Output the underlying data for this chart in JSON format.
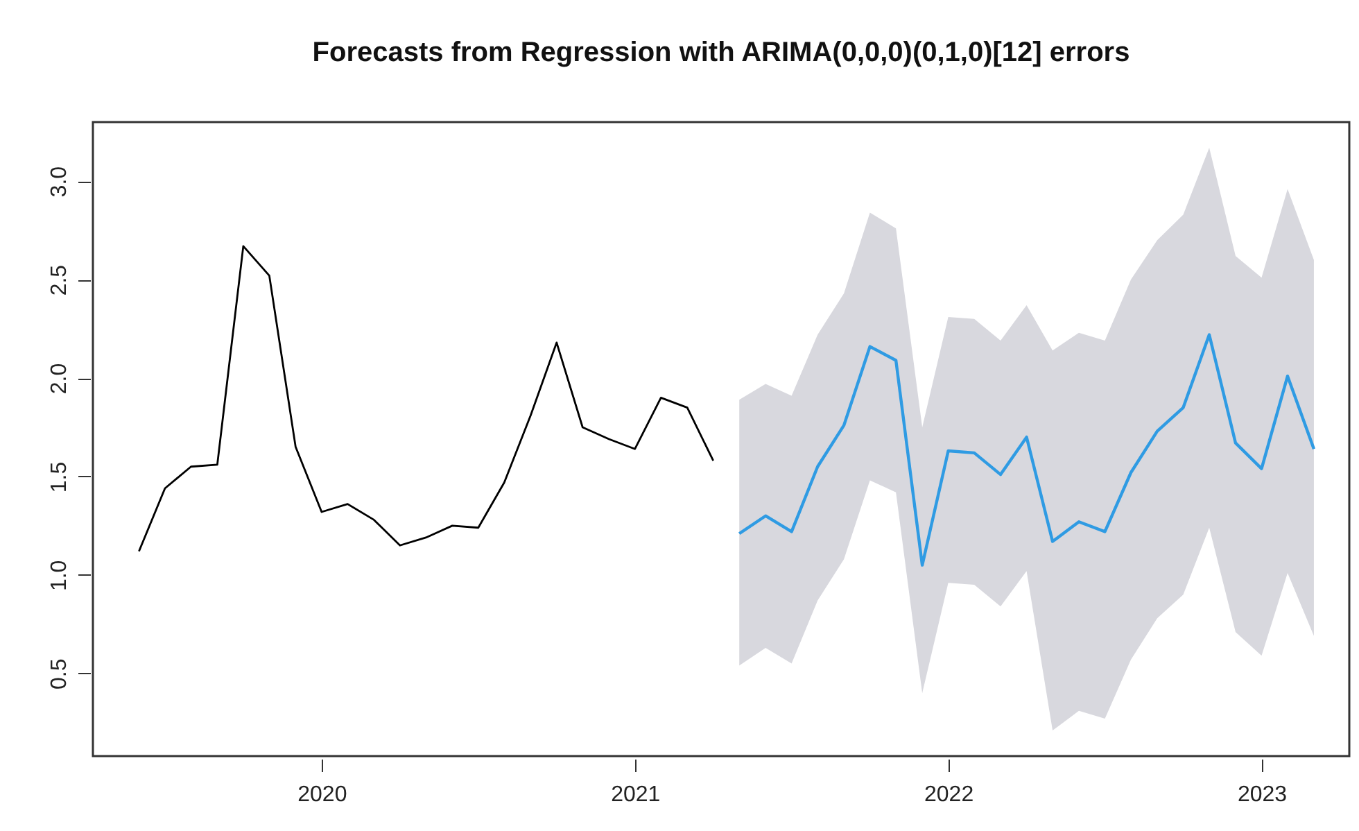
{
  "chart_data": {
    "type": "line",
    "title": "Forecasts from Regression with ARIMA(0,0,0)(0,1,0)[12] errors",
    "series": [
      {
        "color": "#000000",
        "x": [
          2019.417,
          2019.5,
          2019.583,
          2019.667,
          2019.75,
          2019.833,
          2019.917,
          2020,
          2020.083,
          2020.167,
          2020.25,
          2020.333,
          2020.417,
          2020.5,
          2020.583,
          2020.667,
          2020.75,
          2020.833,
          2020.917,
          2021,
          2021.083,
          2021.167,
          2021.25
        ],
        "values": [
          1.12,
          1.44,
          1.55,
          1.56,
          2.67,
          2.52,
          1.65,
          1.32,
          1.36,
          1.28,
          1.15,
          1.19,
          1.25,
          1.24,
          1.47,
          1.81,
          2.18,
          1.75,
          1.69,
          1.64,
          1.9,
          1.85,
          1.58
        ]
      },
      {
        "color": "#2f9be3",
        "x": [
          2021.333,
          2021.417,
          2021.5,
          2021.583,
          2021.667,
          2021.75,
          2021.833,
          2021.917,
          2022,
          2022.083,
          2022.167,
          2022.25,
          2022.333,
          2022.417,
          2022.5,
          2022.583,
          2022.667,
          2022.75,
          2022.833,
          2022.917,
          2023,
          2023.083,
          2023.167
        ],
        "values": [
          1.21,
          1.3,
          1.22,
          1.55,
          1.76,
          2.16,
          2.09,
          1.05,
          1.63,
          1.62,
          1.51,
          1.7,
          1.17,
          1.27,
          1.22,
          1.52,
          1.73,
          1.85,
          2.22,
          1.67,
          1.54,
          2.01,
          1.64
        ],
        "upper": [
          1.89,
          1.97,
          1.91,
          2.22,
          2.43,
          2.84,
          2.76,
          1.75,
          2.31,
          2.3,
          2.19,
          2.37,
          2.14,
          2.23,
          2.19,
          2.5,
          2.7,
          2.83,
          3.17,
          2.62,
          2.51,
          2.96,
          2.6
        ],
        "lower": [
          0.54,
          0.63,
          0.55,
          0.87,
          1.08,
          1.48,
          1.42,
          0.4,
          0.96,
          0.95,
          0.84,
          1.02,
          0.21,
          0.31,
          0.27,
          0.57,
          0.78,
          0.9,
          1.24,
          0.71,
          0.59,
          1.01,
          0.69
        ]
      }
    ],
    "xlim": [
      2019.27,
      2023.28
    ],
    "xticks": [
      2020,
      2021,
      2022,
      2023
    ],
    "ylim": [
      0.08,
      3.3
    ],
    "yticks": [
      0.5,
      {
        "value": 1,
        "label": "1.0"
      },
      1.5,
      {
        "value": 2,
        "label": "2.0"
      },
      2.5,
      {
        "value": 3,
        "label": "3.0"
      }
    ],
    "grid": false
  }
}
